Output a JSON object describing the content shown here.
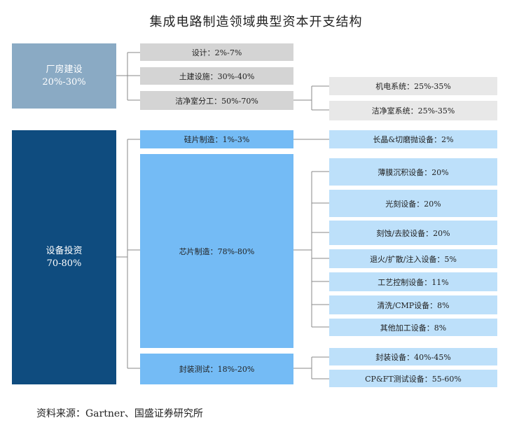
{
  "title": "集成电路制造领域典型资本开支结构",
  "categories": {
    "factory": {
      "name": "厂房建设",
      "range": "20%-30%"
    },
    "equipment": {
      "name": "设备投资",
      "range": "70-80%"
    }
  },
  "factory_items": {
    "design": "设计：2%-7%",
    "civil": "土建设施：30%-40%",
    "cleanroom": "洁净室分工：50%-70%"
  },
  "cleanroom_items": {
    "mep": "机电系统：25%-35%",
    "cleanroom_system": "洁净室系统：25%-35%"
  },
  "equipment_items": {
    "wafer": "硅片制造：1%-3%",
    "chip": "芯片制造：78%-80%",
    "packaging": "封装测试：18%-20%"
  },
  "wafer_items": {
    "crystal": "长晶&切磨抛设备：2%"
  },
  "chip_items": {
    "thin_film": "薄膜沉积设备：20%",
    "litho": "光刻设备：20%",
    "etch": "刻蚀/去胶设备：20%",
    "anneal": "退火/扩散/注入设备：5%",
    "process_control": "工艺控制设备：11%",
    "cleaning": "清洗/CMP设备：8%",
    "other": "其他加工设备：8%"
  },
  "packaging_items": {
    "pack": "封装设备：40%-45%",
    "test": "CP&FT测试设备：55-60%"
  },
  "source": "资料来源：Gartner、国盛证券研究所",
  "colors": {
    "factory": "#8aaac4",
    "equipment": "#0f4c7f",
    "gray_level2": "#d4d4d4",
    "gray_level3": "#e8e8e8",
    "blue_level2": "#74bbf5",
    "blue_level3": "#bde0fa"
  }
}
